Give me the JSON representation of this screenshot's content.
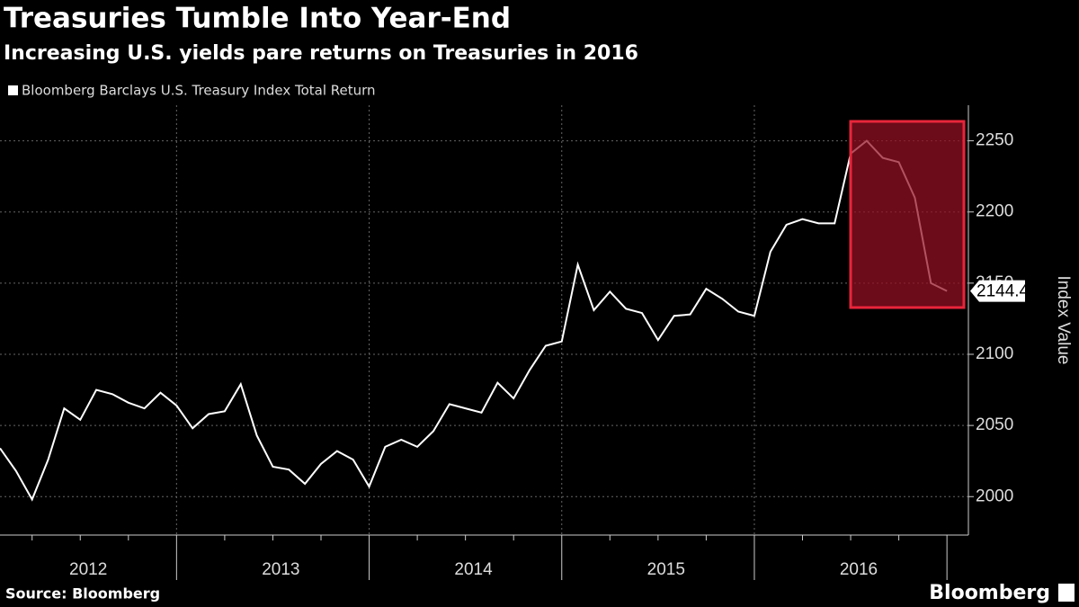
{
  "chart_data": {
    "type": "line",
    "title": "Treasuries Tumble Into Year-End",
    "subtitle": "Increasing U.S. yields pare returns on Treasuries in 2016",
    "y_axis_label": "Index Value",
    "source": "Source: Bloomberg",
    "brand": "Bloomberg",
    "categories": [
      null,
      null,
      null,
      null,
      null,
      "2012",
      null,
      null,
      null,
      null,
      null,
      null,
      null,
      null,
      null,
      null,
      null,
      "2013",
      null,
      null,
      null,
      null,
      null,
      null,
      null,
      null,
      null,
      null,
      null,
      "2014",
      null,
      null,
      null,
      null,
      null,
      null,
      null,
      null,
      null,
      null,
      null,
      "2015",
      null,
      null,
      null,
      null,
      null,
      null,
      null,
      null,
      null,
      null,
      null,
      "2016",
      null,
      null,
      null,
      null,
      null,
      null
    ],
    "series": [
      {
        "name": "Bloomberg Barclays U.S. Treasury Index Total Return",
        "color": "#ffffff",
        "values": [
          2034,
          2018,
          1998,
          2026,
          2062,
          2054,
          2075,
          2072,
          2066,
          2062,
          2073,
          2064,
          2048,
          2058,
          2060,
          2079,
          2043,
          2021,
          2019,
          2009,
          2023,
          2032,
          2026,
          2007,
          2035,
          2040,
          2035,
          2046,
          2065,
          2062,
          2059,
          2080,
          2069,
          2089,
          2106,
          2109,
          2163,
          2131,
          2144,
          2132,
          2129,
          2110,
          2127,
          2128,
          2146,
          2139,
          2130,
          2127,
          2172,
          2191,
          2195,
          2192,
          2192,
          2241,
          2250,
          2238,
          2235,
          2210,
          2150,
          2144.43
        ]
      }
    ],
    "ylim": [
      1973,
      2275
    ],
    "yticks": [
      2000,
      2050,
      2100,
      2150,
      2200,
      2250
    ],
    "grid": true
  }
}
